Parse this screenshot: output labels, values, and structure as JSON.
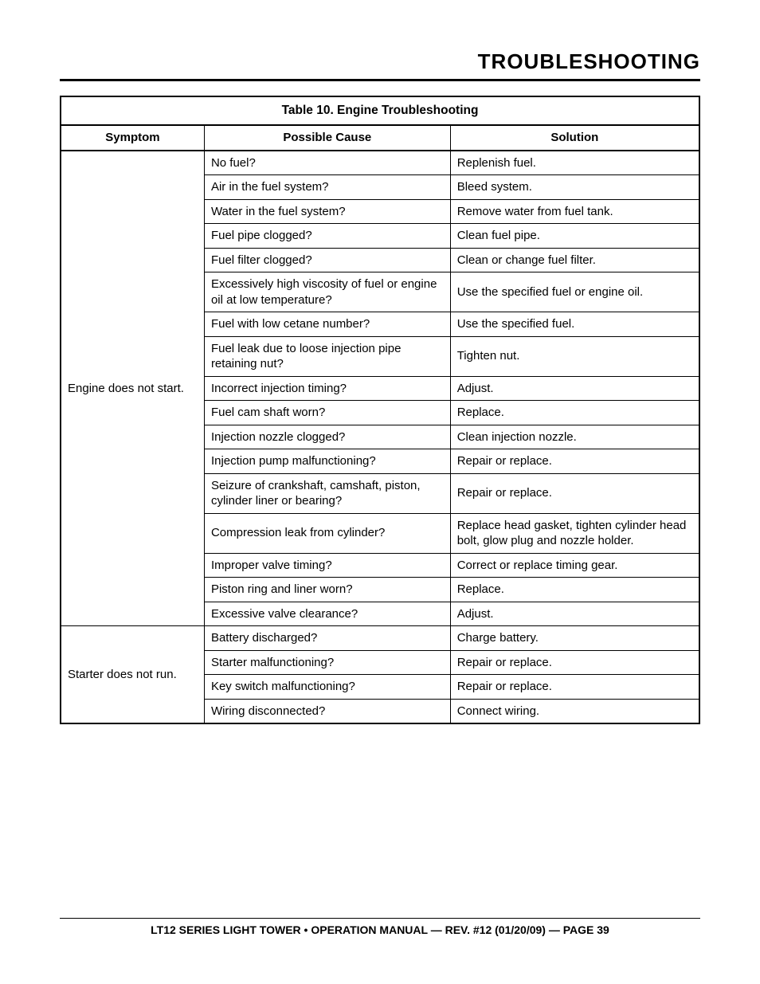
{
  "header": {
    "title": "TROUBLESHOOTING"
  },
  "table": {
    "caption": "Table 10.  Engine Troubleshooting",
    "columns": [
      "Symptom",
      "Possible Cause",
      "Solution"
    ],
    "groups": [
      {
        "symptom": "Engine does not start.",
        "rows": [
          {
            "cause": "No fuel?",
            "solution": "Replenish fuel."
          },
          {
            "cause": "Air in the fuel system?",
            "solution": "Bleed system."
          },
          {
            "cause": "Water in the fuel system?",
            "solution": "Remove water from fuel tank."
          },
          {
            "cause": "Fuel pipe clogged?",
            "solution": "Clean fuel pipe."
          },
          {
            "cause": "Fuel filter clogged?",
            "solution": "Clean or change fuel filter."
          },
          {
            "cause": "Excessively  high viscosity of fuel or engine oil at low temperature?",
            "solution": "Use the specified fuel or engine oil."
          },
          {
            "cause": "Fuel with low cetane number?",
            "solution": "Use the specified fuel."
          },
          {
            "cause": "Fuel leak due to loose injection pipe retaining nut?",
            "solution": "Tighten nut."
          },
          {
            "cause": "Incorrect injection timing?",
            "solution": "Adjust."
          },
          {
            "cause": "Fuel cam shaft worn?",
            "solution": "Replace."
          },
          {
            "cause": "Injection nozzle clogged?",
            "solution": "Clean injection nozzle."
          },
          {
            "cause": "Injection pump malfunctioning?",
            "solution": "Repair or replace."
          },
          {
            "cause": "Seizure of crankshaft, camshaft, piston, cylinder liner or bearing?",
            "solution": "Repair or replace."
          },
          {
            "cause": "Compression leak from cylinder?",
            "solution": "Replace head gasket, tighten cylinder head bolt, glow plug and nozzle holder."
          },
          {
            "cause": "Improper valve timing?",
            "solution": "Correct or replace timing gear."
          },
          {
            "cause": "Piston ring and liner worn?",
            "solution": "Replace."
          },
          {
            "cause": "Excessive valve clearance?",
            "solution": "Adjust."
          }
        ]
      },
      {
        "symptom": "Starter does not run.",
        "rows": [
          {
            "cause": "Battery discharged?",
            "solution": "Charge battery."
          },
          {
            "cause": "Starter malfunctioning?",
            "solution": "Repair or replace."
          },
          {
            "cause": "Key switch malfunctioning?",
            "solution": "Repair or replace."
          },
          {
            "cause": "Wiring disconnected?",
            "solution": "Connect wiring."
          }
        ]
      }
    ]
  },
  "footer": {
    "text": "LT12 SERIES LIGHT TOWER • OPERATION MANUAL — REV. #12 (01/20/09) — PAGE 39"
  }
}
